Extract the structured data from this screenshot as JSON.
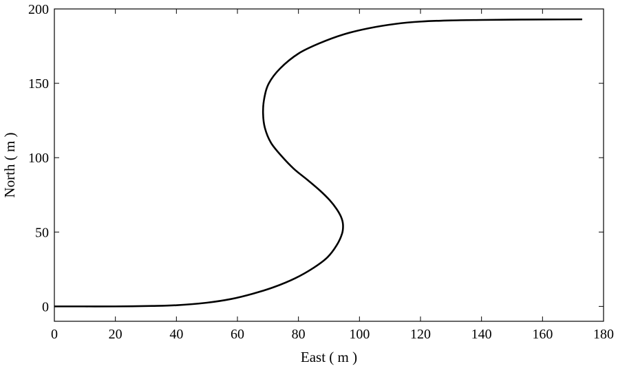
{
  "chart_data": {
    "type": "line",
    "title": "",
    "xlabel": "East ( m )",
    "ylabel": "North ( m )",
    "xlim": [
      0,
      180
    ],
    "ylim": [
      -10,
      200
    ],
    "xticks": [
      0,
      20,
      40,
      60,
      80,
      100,
      120,
      140,
      160,
      180
    ],
    "yticks": [
      0,
      50,
      100,
      150,
      200
    ],
    "grid": false,
    "legend": "none",
    "series": [
      {
        "color": "#000000",
        "points": [
          [
            0,
            0
          ],
          [
            10,
            0
          ],
          [
            20,
            0
          ],
          [
            32,
            0.3
          ],
          [
            40,
            0.8
          ],
          [
            50,
            2.5
          ],
          [
            58,
            5.0
          ],
          [
            65,
            8.5
          ],
          [
            72,
            13.0
          ],
          [
            79,
            19.0
          ],
          [
            85,
            26.0
          ],
          [
            89.5,
            33.0
          ],
          [
            92.5,
            41.0
          ],
          [
            94.3,
            49.0
          ],
          [
            94.6,
            55.0
          ],
          [
            94.0,
            60.0
          ],
          [
            92.5,
            65.5
          ],
          [
            90.2,
            71.5
          ],
          [
            87.0,
            78.0
          ],
          [
            83.0,
            85.0
          ],
          [
            78.5,
            92.5
          ],
          [
            74.5,
            101.0
          ],
          [
            71.0,
            110.0
          ],
          [
            69.0,
            120.0
          ],
          [
            68.4,
            130.0
          ],
          [
            68.8,
            140.0
          ],
          [
            70.3,
            150.0
          ],
          [
            74.0,
            160.0
          ],
          [
            80.0,
            170.0
          ],
          [
            87.0,
            177.0
          ],
          [
            95.0,
            183.0
          ],
          [
            103.0,
            187.0
          ],
          [
            112.0,
            190.0
          ],
          [
            120.0,
            191.5
          ],
          [
            130.0,
            192.3
          ],
          [
            140.0,
            192.6
          ],
          [
            150.0,
            192.8
          ],
          [
            160.0,
            192.9
          ],
          [
            173.0,
            193.0
          ]
        ]
      }
    ]
  }
}
